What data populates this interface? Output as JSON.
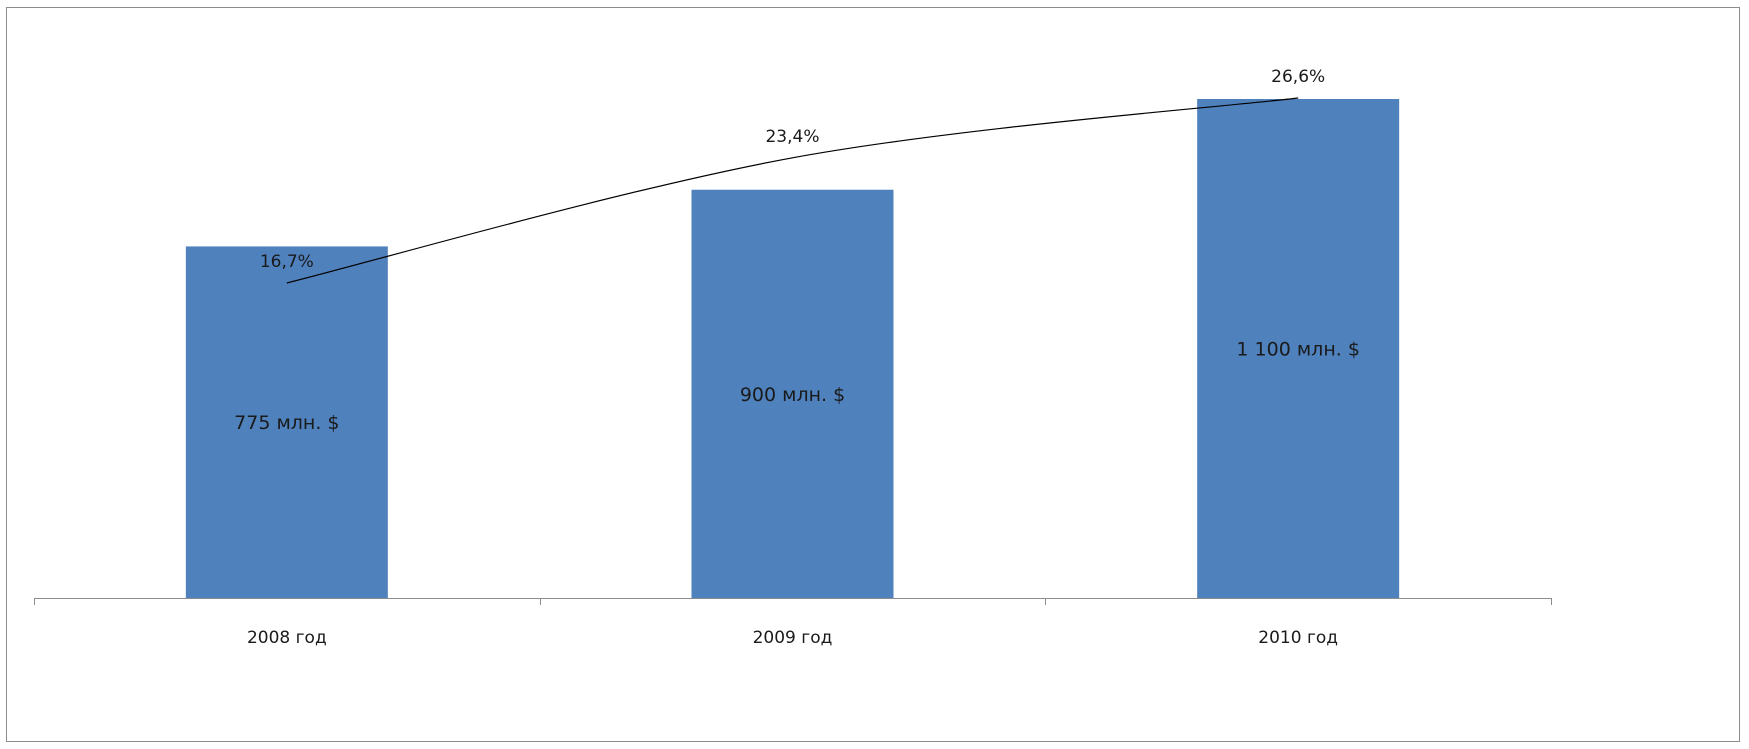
{
  "chart_data": {
    "type": "bar",
    "categories": [
      "2008 год",
      "2009 год",
      "2010 год"
    ],
    "series": [
      {
        "values": [
          775,
          900,
          1100
        ],
        "labels": [
          "775 млн. $",
          "900 млн. $",
          "1 100 млн. $"
        ],
        "color": "#4f81bd"
      },
      {
        "type": "line",
        "values": [
          16.7,
          23.4,
          26.6
        ],
        "labels": [
          "16,7%",
          "23,4%",
          "26,6%"
        ],
        "color": "#000000"
      }
    ],
    "title": "",
    "xlabel": "",
    "ylabel": "",
    "grid": false,
    "legend": "none"
  }
}
